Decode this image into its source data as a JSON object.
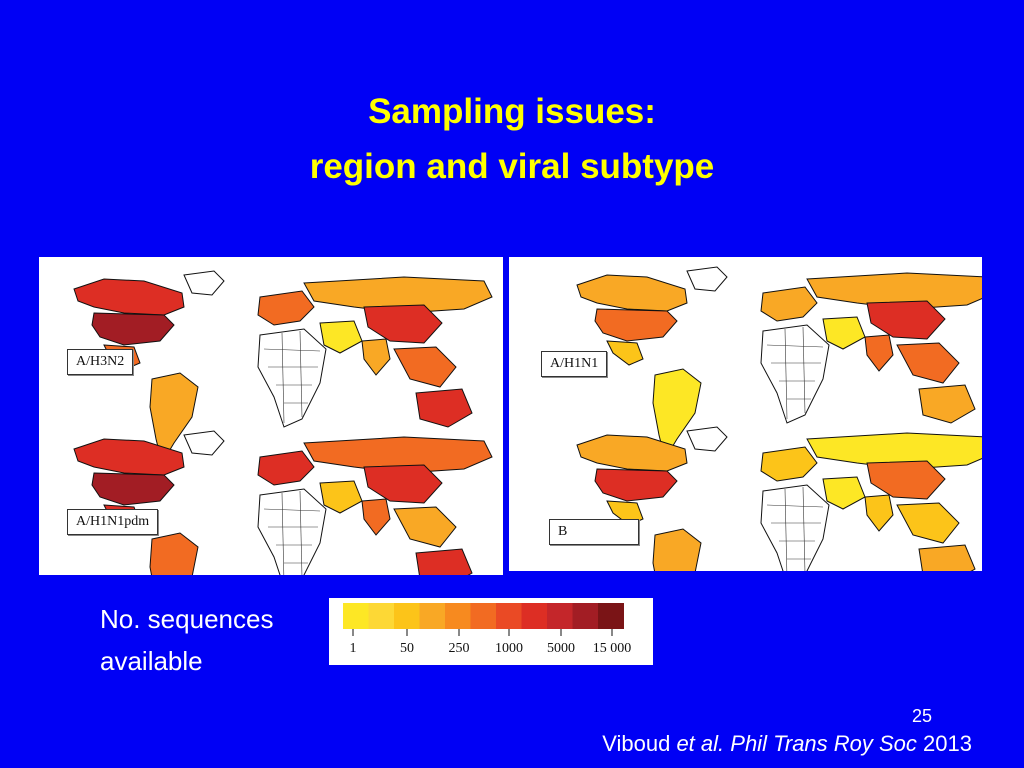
{
  "slide": {
    "title_line1": "Sampling issues:",
    "title_line2": "region and viral subtype",
    "legend_caption_line1": "No. sequences",
    "legend_caption_line2": "available",
    "page_number": "25",
    "citation": {
      "author": "Viboud",
      "etal": "et al.",
      "journal": "Phil Trans Roy Soc",
      "year": "2013"
    }
  },
  "maps": [
    {
      "label": "A/H3N2"
    },
    {
      "label": "A/H1N1pdm"
    },
    {
      "label": "A/H1N1"
    },
    {
      "label": "B"
    }
  ],
  "legend": {
    "colors": [
      "#fde725",
      "#fdd835",
      "#fcc419",
      "#f9a825",
      "#f78a1f",
      "#f26b22",
      "#ea4a25",
      "#dd2e24",
      "#c4262a",
      "#a21d24",
      "#7a1416"
    ],
    "tick_labels": [
      "1",
      "50",
      "250",
      "1000",
      "5000",
      "15 000"
    ]
  },
  "region_colors": {
    "white": "#ffffff",
    "level1": "#fde725",
    "level2": "#fcc419",
    "level3": "#f9a825",
    "level4": "#f26b22",
    "level5": "#dd2e24",
    "level6": "#a21d24"
  },
  "map_fills": [
    {
      "na_north": "#dd2e24",
      "usa": "#a21d24",
      "mexico": "#f26b22",
      "south_america": "#f9a825",
      "europe": "#f26b22",
      "russia": "#f9a825",
      "africa": "#ffffff",
      "middle_east": "#fde725",
      "china": "#dd2e24",
      "india": "#f9a825",
      "se_asia": "#f26b22",
      "australia": "#dd2e24"
    },
    {
      "na_north": "#dd2e24",
      "usa": "#a21d24",
      "mexico": "#dd2e24",
      "south_america": "#f26b22",
      "europe": "#dd2e24",
      "russia": "#f26b22",
      "africa": "#ffffff",
      "middle_east": "#fcc419",
      "china": "#dd2e24",
      "india": "#f26b22",
      "se_asia": "#f9a825",
      "australia": "#dd2e24"
    },
    {
      "na_north": "#f9a825",
      "usa": "#f26b22",
      "mexico": "#fcc419",
      "south_america": "#fde725",
      "europe": "#f9a825",
      "russia": "#f9a825",
      "africa": "#ffffff",
      "middle_east": "#fde725",
      "china": "#dd2e24",
      "india": "#f26b22",
      "se_asia": "#f26b22",
      "australia": "#f9a825"
    },
    {
      "na_north": "#f9a825",
      "usa": "#dd2e24",
      "mexico": "#fcc419",
      "south_america": "#f9a825",
      "europe": "#fcc419",
      "russia": "#fde725",
      "africa": "#ffffff",
      "middle_east": "#fde725",
      "china": "#f26b22",
      "india": "#fcc419",
      "se_asia": "#fcc419",
      "australia": "#f9a825"
    }
  ]
}
